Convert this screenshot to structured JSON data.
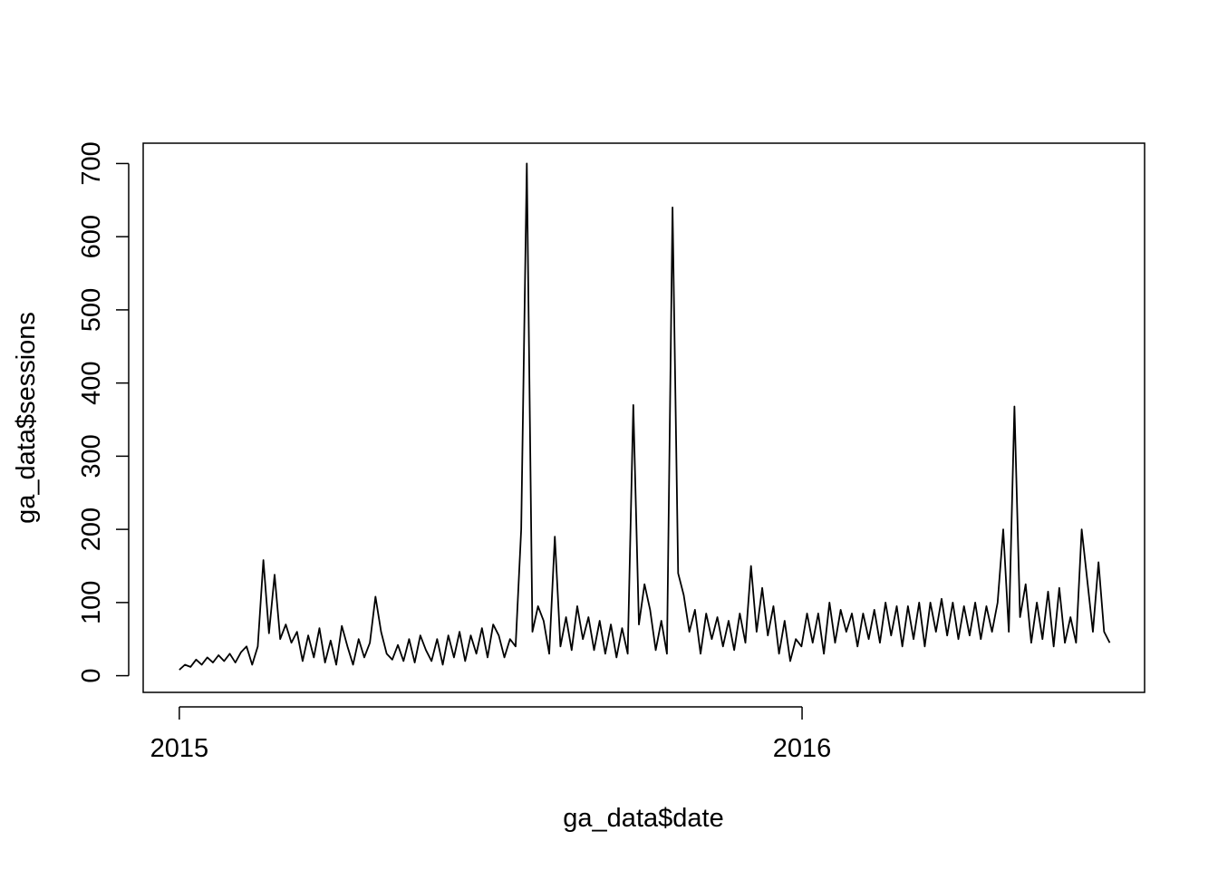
{
  "chart_data": {
    "type": "line",
    "x_label": "ga_data$date",
    "y_label": "ga_data$sessions",
    "color": "#000000",
    "xlim": [
      2014.942,
      2016.55
    ],
    "ylim": [
      -22.8,
      727.8
    ],
    "xticks": [
      2015,
      2016
    ],
    "yticks": [
      0,
      100,
      200,
      300,
      400,
      500,
      600,
      700
    ],
    "x": [
      2015,
      2015.009,
      2015.018,
      2015.027,
      2015.036,
      2015.045,
      2015.054,
      2015.063,
      2015.072,
      2015.081,
      2015.09,
      2015.099,
      2015.108,
      2015.117,
      2015.126,
      2015.135,
      2015.144,
      2015.153,
      2015.162,
      2015.171,
      2015.18,
      2015.189,
      2015.198,
      2015.207,
      2015.216,
      2015.225,
      2015.234,
      2015.243,
      2015.252,
      2015.261,
      2015.27,
      2015.279,
      2015.288,
      2015.297,
      2015.306,
      2015.315,
      2015.324,
      2015.333,
      2015.342,
      2015.351,
      2015.36,
      2015.369,
      2015.378,
      2015.387,
      2015.396,
      2015.405,
      2015.414,
      2015.423,
      2015.432,
      2015.441,
      2015.45,
      2015.459,
      2015.468,
      2015.477,
      2015.486,
      2015.495,
      2015.504,
      2015.513,
      2015.522,
      2015.531,
      2015.54,
      2015.549,
      2015.558,
      2015.567,
      2015.576,
      2015.585,
      2015.594,
      2015.603,
      2015.612,
      2015.621,
      2015.63,
      2015.639,
      2015.648,
      2015.657,
      2015.666,
      2015.675,
      2015.684,
      2015.693,
      2015.702,
      2015.711,
      2015.72,
      2015.729,
      2015.738,
      2015.747,
      2015.756,
      2015.765,
      2015.774,
      2015.783,
      2015.792,
      2015.801,
      2015.81,
      2015.819,
      2015.828,
      2015.837,
      2015.846,
      2015.855,
      2015.864,
      2015.873,
      2015.882,
      2015.891,
      2015.9,
      2015.909,
      2015.918,
      2015.927,
      2015.936,
      2015.945,
      2015.954,
      2015.963,
      2015.972,
      2015.981,
      2015.99,
      2015.999,
      2016.008,
      2016.017,
      2016.026,
      2016.035,
      2016.044,
      2016.053,
      2016.062,
      2016.071,
      2016.08,
      2016.089,
      2016.098,
      2016.107,
      2016.116,
      2016.125,
      2016.134,
      2016.143,
      2016.152,
      2016.161,
      2016.17,
      2016.179,
      2016.188,
      2016.197,
      2016.206,
      2016.215,
      2016.224,
      2016.233,
      2016.242,
      2016.251,
      2016.26,
      2016.269,
      2016.278,
      2016.287,
      2016.296,
      2016.305,
      2016.314,
      2016.323,
      2016.332,
      2016.341,
      2016.35,
      2016.359,
      2016.368,
      2016.377,
      2016.386,
      2016.395,
      2016.404,
      2016.413,
      2016.422,
      2016.431,
      2016.44,
      2016.449,
      2016.458,
      2016.467,
      2016.476,
      2016.485,
      2016.494
    ],
    "values": [
      8,
      15,
      12,
      22,
      15,
      25,
      18,
      28,
      20,
      30,
      18,
      32,
      40,
      15,
      40,
      158,
      58,
      138,
      50,
      70,
      45,
      60,
      20,
      55,
      25,
      65,
      18,
      48,
      15,
      68,
      40,
      15,
      50,
      25,
      45,
      108,
      60,
      30,
      22,
      42,
      20,
      50,
      18,
      55,
      35,
      20,
      50,
      15,
      55,
      25,
      60,
      20,
      55,
      30,
      65,
      25,
      70,
      55,
      25,
      50,
      40,
      200,
      700,
      60,
      95,
      75,
      30,
      190,
      40,
      80,
      35,
      95,
      50,
      80,
      35,
      75,
      30,
      70,
      25,
      65,
      30,
      370,
      70,
      125,
      90,
      35,
      75,
      30,
      640,
      140,
      110,
      60,
      90,
      30,
      85,
      50,
      80,
      40,
      75,
      35,
      85,
      45,
      150,
      60,
      120,
      55,
      95,
      30,
      75,
      20,
      50,
      40,
      85,
      45,
      85,
      30,
      100,
      45,
      90,
      60,
      85,
      40,
      85,
      50,
      90,
      45,
      100,
      55,
      95,
      40,
      95,
      50,
      100,
      40,
      100,
      60,
      105,
      55,
      100,
      50,
      95,
      55,
      100,
      50,
      95,
      60,
      100,
      200,
      60,
      368,
      80,
      125,
      45,
      100,
      50,
      115,
      40,
      120,
      45,
      80,
      45,
      200,
      130,
      60,
      155,
      60,
      45
    ]
  }
}
